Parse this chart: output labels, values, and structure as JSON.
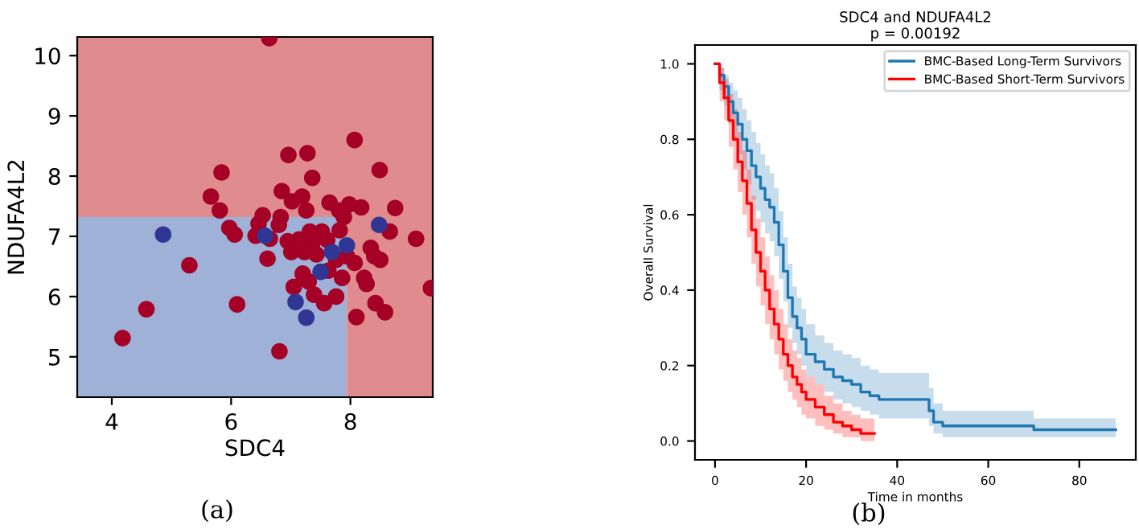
{
  "chart_data": [
    {
      "type": "scatter",
      "xlabel": "SDC4",
      "ylabel": "NDUFA4L2",
      "annotations": [
        "(a)"
      ],
      "xlim": [
        3.42,
        9.38
      ],
      "ylim": [
        4.33,
        10.31
      ],
      "xticks": [
        4,
        6,
        8
      ],
      "yticks": [
        5,
        6,
        7,
        8,
        9,
        10
      ],
      "grid": false,
      "legend": false,
      "marker": "circle",
      "bands": [
        {
          "axis": "x",
          "from": 3.42,
          "to": 7.94,
          "color": "#9fb1d6"
        },
        {
          "axis": "y",
          "from": 7.32,
          "to": 10.31,
          "color": "#e08b8d"
        },
        {
          "axis": "x",
          "from": 7.94,
          "to": 9.38,
          "color": "#e08b8d"
        }
      ],
      "series": [
        {
          "color": "#a50026",
          "x": [
            6.64,
            8.07,
            7.28,
            6.96,
            5.84,
            8.49,
            7.36,
            5.66,
            6.85,
            7.19,
            7.02,
            7.65,
            7.98,
            8.18,
            8.75,
            5.81,
            7.26,
            7.81,
            6.53,
            6.83,
            7.89,
            6.46,
            6.8,
            8.66,
            5.97,
            6.06,
            6.41,
            7.32,
            7.52,
            7.82,
            6.65,
            6.95,
            7.14,
            7.36,
            7.61,
            9.1,
            8.34,
            7.01,
            7.23,
            7.43,
            7.76,
            8.4,
            8.5,
            7.94,
            8.07,
            6.61,
            5.3,
            7.2,
            7.63,
            8.23,
            7.86,
            7.05,
            7.3,
            8.27,
            9.35,
            7.39,
            7.56,
            7.76,
            8.42,
            8.58,
            8.1,
            4.58,
            6.1,
            4.18,
            6.81
          ],
          "values": [
            10.29,
            8.6,
            8.38,
            8.35,
            8.06,
            8.1,
            7.97,
            7.66,
            7.75,
            7.66,
            7.58,
            7.56,
            7.53,
            7.48,
            7.47,
            7.43,
            7.43,
            7.43,
            7.35,
            7.32,
            7.32,
            7.21,
            7.19,
            7.08,
            7.14,
            7.03,
            7.01,
            7.08,
            7.08,
            7.1,
            6.96,
            6.92,
            6.95,
            6.88,
            6.94,
            6.96,
            6.81,
            6.74,
            6.74,
            6.7,
            6.61,
            6.67,
            6.61,
            6.67,
            6.56,
            6.63,
            6.52,
            6.38,
            6.43,
            6.31,
            6.31,
            6.16,
            6.25,
            6.21,
            6.14,
            6.03,
            5.89,
            6.0,
            5.89,
            5.74,
            5.66,
            5.79,
            5.87,
            5.31,
            5.09
          ]
        },
        {
          "color": "#313695",
          "x": [
            4.86,
            6.57,
            7.69,
            7.94,
            7.5,
            7.08,
            7.26,
            8.48
          ],
          "values": [
            7.03,
            7.01,
            6.74,
            6.85,
            6.41,
            5.91,
            5.65,
            7.19
          ]
        }
      ]
    },
    {
      "type": "step",
      "title": "SDC4 and NDUFA4L2",
      "subtitle": "p = 0.00192",
      "xlabel": "Time in months",
      "ylabel": "Overall Survival",
      "annotations": [
        "(b)"
      ],
      "xlim": [
        -4.4,
        92.4
      ],
      "ylim": [
        -0.05,
        1.05
      ],
      "xticks": [
        0,
        20,
        40,
        60,
        80
      ],
      "yticks": [
        {
          "value": 0,
          "label": "0.0"
        },
        {
          "value": 0.2,
          "label": "0.2"
        },
        {
          "value": 0.4,
          "label": "0.4"
        },
        {
          "value": 0.6,
          "label": "0.6"
        },
        {
          "value": 0.8,
          "label": "0.8"
        },
        {
          "value": 1,
          "label": "1.0"
        }
      ],
      "grid": false,
      "legend": "top right",
      "series": [
        {
          "name": "BMC-Based Long-Term Survivors",
          "color": "#1f77b4",
          "x": [
            0,
            1,
            2,
            3,
            4,
            5,
            6,
            7,
            8,
            9,
            10,
            11,
            12,
            13,
            14,
            15,
            16,
            17,
            18,
            19,
            20,
            22,
            24,
            26,
            28,
            30,
            32,
            34,
            36,
            47,
            48,
            50,
            70,
            88
          ],
          "values": [
            1.0,
            0.97,
            0.94,
            0.9,
            0.87,
            0.84,
            0.8,
            0.77,
            0.73,
            0.7,
            0.67,
            0.64,
            0.62,
            0.58,
            0.52,
            0.45,
            0.38,
            0.33,
            0.3,
            0.27,
            0.23,
            0.21,
            0.19,
            0.17,
            0.16,
            0.15,
            0.13,
            0.12,
            0.11,
            0.08,
            0.05,
            0.04,
            0.03,
            0.03
          ],
          "lower": [
            1.0,
            0.93,
            0.89,
            0.84,
            0.8,
            0.76,
            0.72,
            0.68,
            0.64,
            0.61,
            0.58,
            0.55,
            0.53,
            0.49,
            0.43,
            0.37,
            0.3,
            0.26,
            0.23,
            0.2,
            0.17,
            0.15,
            0.13,
            0.11,
            0.1,
            0.09,
            0.08,
            0.07,
            0.06,
            0.04,
            0.02,
            0.01,
            0.01,
            0.01
          ],
          "upper": [
            1.0,
            0.99,
            0.97,
            0.95,
            0.93,
            0.91,
            0.88,
            0.85,
            0.82,
            0.79,
            0.76,
            0.73,
            0.71,
            0.67,
            0.61,
            0.54,
            0.47,
            0.41,
            0.38,
            0.35,
            0.31,
            0.28,
            0.26,
            0.24,
            0.23,
            0.22,
            0.2,
            0.19,
            0.18,
            0.14,
            0.1,
            0.08,
            0.06,
            0.06
          ]
        },
        {
          "name": "BMC-Based Short-Term Survivors",
          "color": "#ff0000",
          "x": [
            0,
            1,
            2,
            3,
            4,
            5,
            6,
            7,
            8,
            9,
            10,
            11,
            12,
            13,
            14,
            15,
            16,
            17,
            18,
            19,
            20,
            22,
            24,
            26,
            28,
            30,
            32,
            35
          ],
          "values": [
            1.0,
            0.95,
            0.91,
            0.85,
            0.8,
            0.74,
            0.69,
            0.63,
            0.56,
            0.5,
            0.45,
            0.4,
            0.35,
            0.31,
            0.27,
            0.23,
            0.2,
            0.17,
            0.15,
            0.13,
            0.11,
            0.09,
            0.07,
            0.05,
            0.04,
            0.03,
            0.02,
            0.02
          ],
          "lower": [
            1.0,
            0.9,
            0.85,
            0.78,
            0.72,
            0.66,
            0.6,
            0.54,
            0.47,
            0.41,
            0.36,
            0.31,
            0.27,
            0.23,
            0.19,
            0.16,
            0.13,
            0.11,
            0.09,
            0.07,
            0.06,
            0.04,
            0.03,
            0.02,
            0.01,
            0.01,
            0.0,
            0.0
          ],
          "upper": [
            1.0,
            0.99,
            0.96,
            0.92,
            0.88,
            0.82,
            0.77,
            0.72,
            0.65,
            0.59,
            0.54,
            0.49,
            0.44,
            0.4,
            0.35,
            0.31,
            0.27,
            0.24,
            0.22,
            0.19,
            0.17,
            0.15,
            0.12,
            0.1,
            0.08,
            0.07,
            0.06,
            0.06
          ]
        }
      ]
    }
  ]
}
